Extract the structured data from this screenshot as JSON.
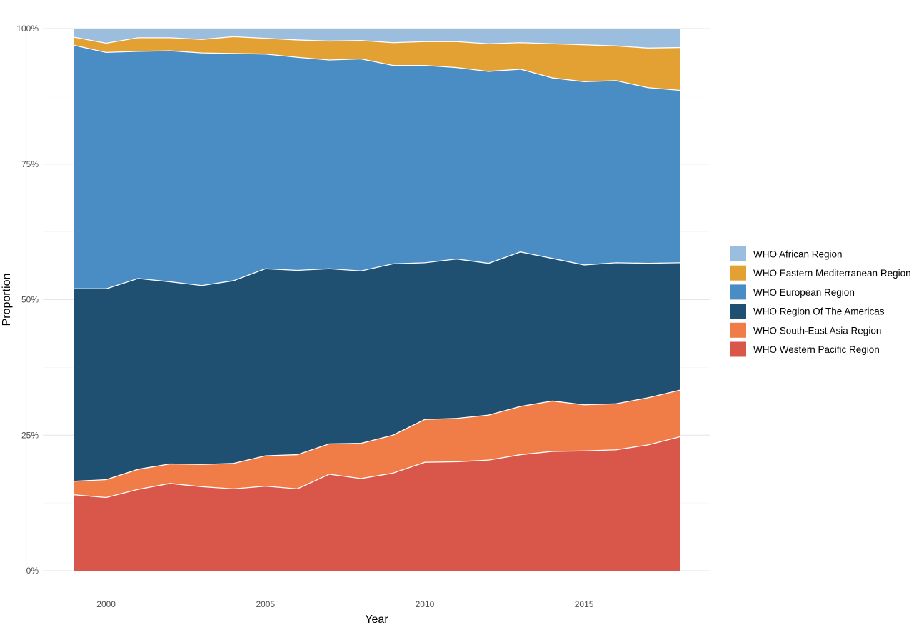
{
  "chart_data": {
    "type": "area",
    "stacked": true,
    "normalized": true,
    "title": "",
    "xlabel": "Year",
    "ylabel": "Proportion",
    "xlim": [
      1999,
      2018
    ],
    "ylim": [
      0,
      1
    ],
    "x_ticks": [
      2000,
      2005,
      2010,
      2015
    ],
    "y_ticks": [
      0,
      0.25,
      0.5,
      0.75,
      1
    ],
    "y_tick_labels": [
      "0%",
      "25%",
      "50%",
      "75%",
      "100%"
    ],
    "grid": true,
    "legend_position": "right",
    "x": [
      1999,
      2000,
      2001,
      2002,
      2003,
      2004,
      2005,
      2006,
      2007,
      2008,
      2009,
      2010,
      2011,
      2012,
      2013,
      2014,
      2015,
      2016,
      2017,
      2018
    ],
    "series": [
      {
        "name": "WHO Western Pacific Region",
        "color": "#d9574a",
        "values": [
          0.14,
          0.135,
          0.15,
          0.161,
          0.155,
          0.151,
          0.156,
          0.151,
          0.178,
          0.17,
          0.18,
          0.2,
          0.201,
          0.204,
          0.214,
          0.22,
          0.221,
          0.223,
          0.232,
          0.247
        ]
      },
      {
        "name": "WHO South-East Asia Region",
        "color": "#f07c47",
        "values": [
          0.025,
          0.033,
          0.037,
          0.036,
          0.041,
          0.047,
          0.056,
          0.063,
          0.056,
          0.065,
          0.07,
          0.079,
          0.08,
          0.083,
          0.089,
          0.093,
          0.085,
          0.085,
          0.087,
          0.086
        ]
      },
      {
        "name": "WHO Region Of The Americas",
        "color": "#1f5071",
        "values": [
          0.355,
          0.352,
          0.352,
          0.336,
          0.33,
          0.337,
          0.345,
          0.34,
          0.323,
          0.318,
          0.316,
          0.289,
          0.294,
          0.28,
          0.285,
          0.263,
          0.258,
          0.26,
          0.248,
          0.235
        ]
      },
      {
        "name": "WHO European Region",
        "color": "#4a8cc4",
        "values": [
          0.449,
          0.436,
          0.419,
          0.426,
          0.429,
          0.419,
          0.396,
          0.393,
          0.385,
          0.391,
          0.366,
          0.364,
          0.353,
          0.354,
          0.337,
          0.333,
          0.338,
          0.336,
          0.324,
          0.318
        ]
      },
      {
        "name": "WHO Eastern Mediterranean Region",
        "color": "#e3a133",
        "values": [
          0.015,
          0.017,
          0.025,
          0.024,
          0.025,
          0.031,
          0.029,
          0.032,
          0.035,
          0.034,
          0.042,
          0.044,
          0.048,
          0.051,
          0.049,
          0.063,
          0.068,
          0.064,
          0.073,
          0.079
        ]
      },
      {
        "name": "WHO African Region",
        "color": "#9bbdde",
        "values": [
          0.016,
          0.027,
          0.017,
          0.017,
          0.02,
          0.015,
          0.018,
          0.021,
          0.023,
          0.022,
          0.026,
          0.024,
          0.024,
          0.028,
          0.026,
          0.028,
          0.03,
          0.032,
          0.036,
          0.035
        ]
      }
    ],
    "legend_order": [
      "WHO African Region",
      "WHO Eastern Mediterranean Region",
      "WHO European Region",
      "WHO Region Of The Americas",
      "WHO South-East Asia Region",
      "WHO Western Pacific Region"
    ]
  }
}
